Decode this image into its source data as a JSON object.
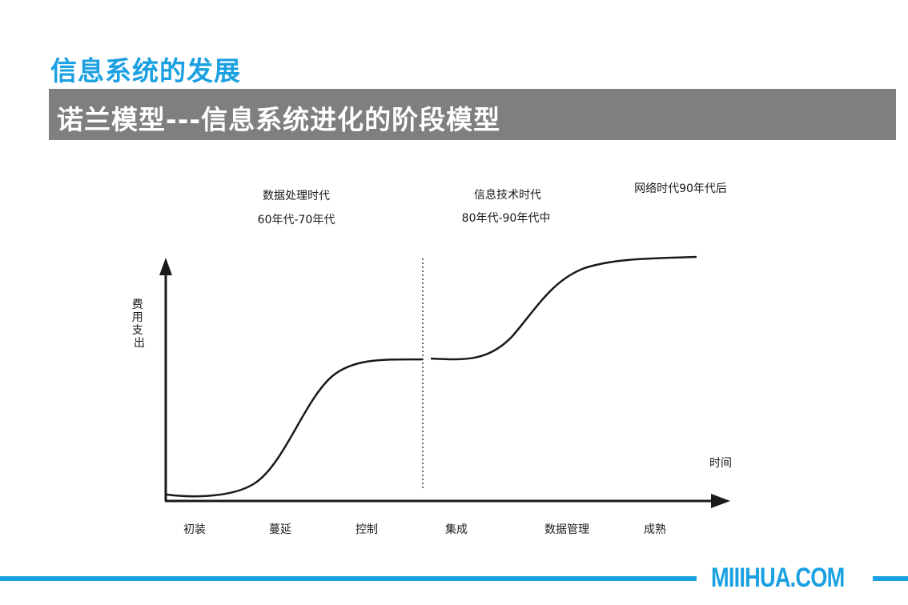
{
  "slide": {
    "title": "信息系统的发展",
    "banner": "诺兰模型---信息系统进化的阶段模型"
  },
  "diagram": {
    "eras": [
      {
        "name": "数据处理时代",
        "period": "60年代-70年代"
      },
      {
        "name": "信息技术时代",
        "period": "80年代-90年代中"
      },
      {
        "name": "网络时代90年代后",
        "period": ""
      }
    ],
    "y_axis_label": "费用支出",
    "x_axis_label": "时间",
    "stages": [
      "初装",
      "蔓延",
      "控制",
      "集成",
      "数据管理",
      "成熟"
    ]
  },
  "footer": {
    "brand": "MIIIHUA.COM"
  },
  "colors": {
    "accent": "#1ba1e2",
    "banner": "#7f7f7f",
    "ink": "#1a1a1a"
  }
}
